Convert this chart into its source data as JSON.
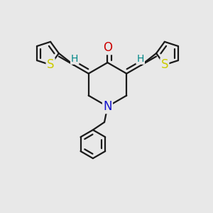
{
  "bg_color": "#e8e8e8",
  "bond_color": "#1a1a1a",
  "bond_width": 1.6,
  "atom_colors": {
    "S": "#cccc00",
    "N": "#1111cc",
    "O": "#cc0000",
    "H": "#008888"
  }
}
